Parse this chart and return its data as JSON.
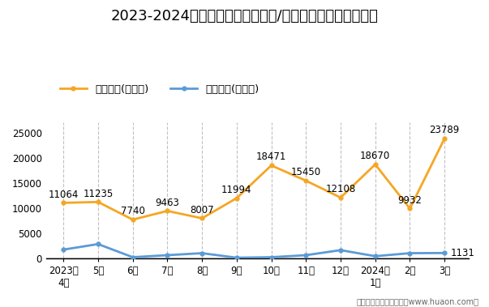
{
  "title": "2023-2024年宝鸡市（境内目的地/货源地）进、出口额统计",
  "categories": [
    "2023年\n4月",
    "5月",
    "6月",
    "7月",
    "8月",
    "9月",
    "10月",
    "11月",
    "12月",
    "2024年\n1月",
    "2月",
    "3月"
  ],
  "export_values": [
    11064,
    11235,
    7740,
    9463,
    8007,
    11994,
    18471,
    15450,
    12108,
    18670,
    9932,
    23789
  ],
  "import_values": [
    1800,
    2900,
    300,
    700,
    1100,
    200,
    300,
    700,
    1700,
    500,
    1100,
    1131
  ],
  "export_label": "出口总额(万美元)",
  "import_label": "进口总额(万美元)",
  "export_color": "#F5A623",
  "import_color": "#5B9BD5",
  "ylim": [
    0,
    27000
  ],
  "yticks": [
    0,
    5000,
    10000,
    15000,
    20000,
    25000
  ],
  "background_color": "#FFFFFF",
  "footer": "制图：华经产业研究院（www.huaon.com）",
  "title_fontsize": 13,
  "legend_fontsize": 9.5,
  "tick_fontsize": 8.5,
  "annotation_fontsize": 8.5,
  "grid_color": "#BBBBBB",
  "grid_style": "--",
  "grid_alpha": 0.9
}
